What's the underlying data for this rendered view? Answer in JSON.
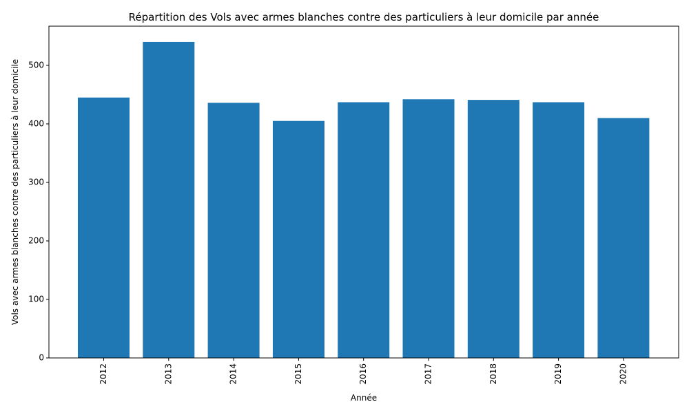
{
  "chart_data": {
    "type": "bar",
    "title": "Répartition des Vols avec armes blanches contre des particuliers à leur domicile par année",
    "xlabel": "Année",
    "ylabel": "Vols avec armes blanches contre des particuliers à leur domicile",
    "categories": [
      "2012",
      "2013",
      "2014",
      "2015",
      "2016",
      "2017",
      "2018",
      "2019",
      "2020"
    ],
    "values": [
      445,
      540,
      436,
      405,
      437,
      442,
      441,
      437,
      410
    ],
    "ylim": [
      0,
      567
    ],
    "yticks": [
      0,
      100,
      200,
      300,
      400,
      500
    ],
    "bar_color": "#1f77b4",
    "grid": false,
    "legend": "none"
  }
}
